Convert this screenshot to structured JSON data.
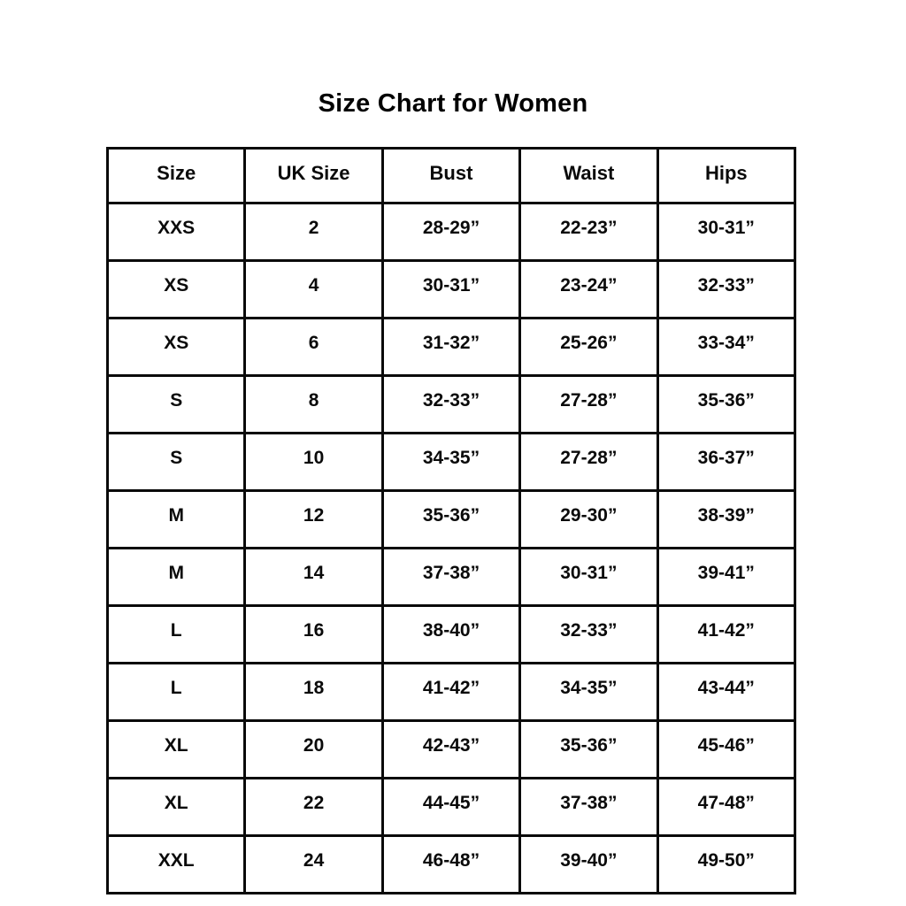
{
  "page": {
    "title": "Size Chart for Women"
  },
  "chart_data": {
    "type": "table",
    "title": "Size Chart for Women",
    "columns": [
      "Size",
      "UK Size",
      "Bust",
      "Waist",
      "Hips"
    ],
    "rows": [
      [
        "XXS",
        "2",
        "28-29”",
        "22-23”",
        "30-31”"
      ],
      [
        "XS",
        "4",
        "30-31”",
        "23-24”",
        "32-33”"
      ],
      [
        "XS",
        "6",
        "31-32”",
        "25-26”",
        "33-34”"
      ],
      [
        "S",
        "8",
        "32-33”",
        "27-28”",
        "35-36”"
      ],
      [
        "S",
        "10",
        "34-35”",
        "27-28”",
        "36-37”"
      ],
      [
        "M",
        "12",
        "35-36”",
        "29-30”",
        "38-39”"
      ],
      [
        "M",
        "14",
        "37-38”",
        "30-31”",
        "39-41”"
      ],
      [
        "L",
        "16",
        "38-40”",
        "32-33”",
        "41-42”"
      ],
      [
        "L",
        "18",
        "41-42”",
        "34-35”",
        "43-44”"
      ],
      [
        "XL",
        "20",
        "42-43”",
        "35-36”",
        "45-46”"
      ],
      [
        "XL",
        "22",
        "44-45”",
        "37-38”",
        "47-48”"
      ],
      [
        "XXL",
        "24",
        "46-48”",
        "39-40”",
        "49-50”"
      ]
    ],
    "layout": {
      "text_color": "#0a0a0a",
      "border_color": "#0a0a0a",
      "background_color": "#ffffff"
    }
  }
}
